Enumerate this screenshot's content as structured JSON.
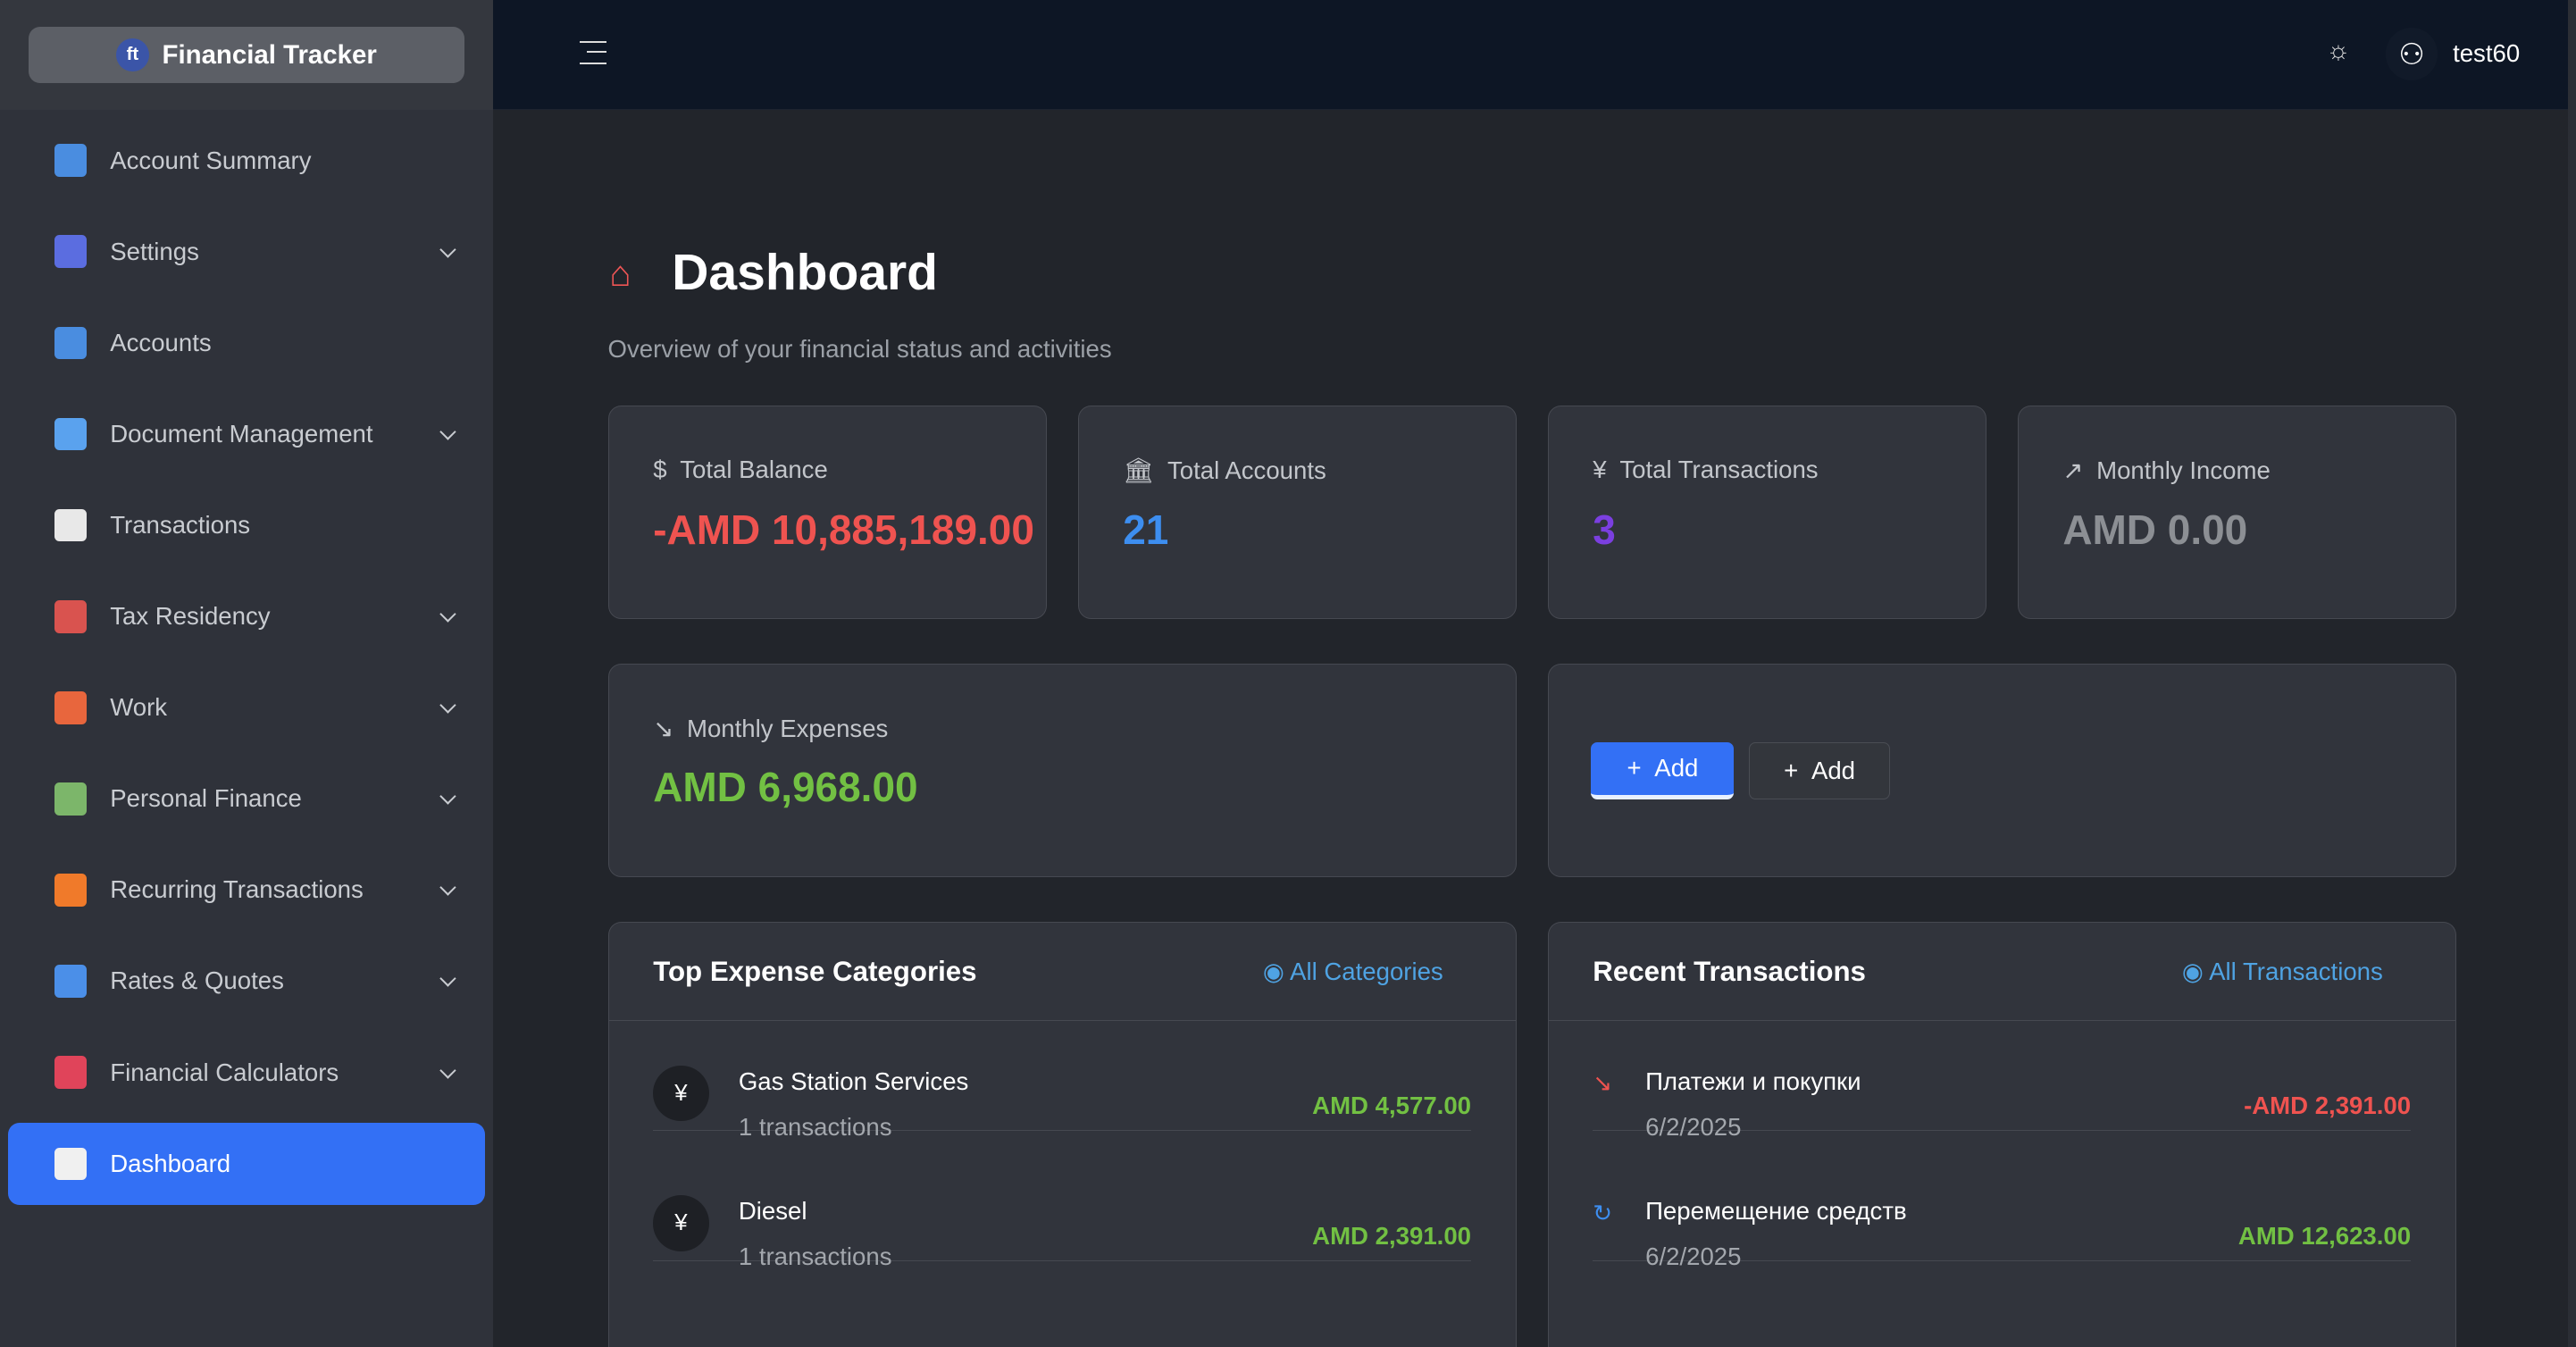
{
  "app": {
    "title": "Financial Tracker",
    "user": "test60"
  },
  "sidebar": {
    "items": [
      {
        "label": "Account Summary",
        "icon": "account-summary-icon",
        "color": "#4a8de0",
        "expandable": false
      },
      {
        "label": "Settings",
        "icon": "workflow-icon",
        "color": "#5b6de0",
        "expandable": true
      },
      {
        "label": "Accounts",
        "icon": "accounts-icon",
        "color": "#4a8de0",
        "expandable": false
      },
      {
        "label": "Document Management",
        "icon": "building-icon",
        "color": "#5aa2ee",
        "expandable": true
      },
      {
        "label": "Transactions",
        "icon": "transactions-icon",
        "color": "#e8e8e8",
        "expandable": false
      },
      {
        "label": "Tax Residency",
        "icon": "person-icon",
        "color": "#d9534f",
        "expandable": true
      },
      {
        "label": "Work",
        "icon": "briefcase-icon",
        "color": "#e8663d",
        "expandable": true
      },
      {
        "label": "Personal Finance",
        "icon": "money-envelope-icon",
        "color": "#7cb66a",
        "expandable": true
      },
      {
        "label": "Recurring Transactions",
        "icon": "refresh-icon",
        "color": "#f07a2a",
        "expandable": true
      },
      {
        "label": "Rates & Quotes",
        "icon": "area-chart-icon",
        "color": "#4b8fe8",
        "expandable": true
      },
      {
        "label": "Financial Calculators",
        "icon": "bar-chart-icon",
        "color": "#e0445a",
        "expandable": true
      },
      {
        "label": "Dashboard",
        "icon": "dashboard-icon",
        "color": "#f0f0f0",
        "expandable": false,
        "active": true
      }
    ]
  },
  "page": {
    "title": "Dashboard",
    "subtitle": "Overview of your financial status and activities"
  },
  "stats": [
    {
      "label": "Total Balance",
      "value": "-AMD 10,885,189.00",
      "color": "#ef5350",
      "icon": "dollar-circle-icon",
      "glyph": "$"
    },
    {
      "label": "Total Accounts",
      "value": "21",
      "color": "#3d8ef0",
      "icon": "bank-icon",
      "glyph": "🏛"
    },
    {
      "label": "Total Transactions",
      "value": "3",
      "color": "#7b3fe0",
      "icon": "transaction-circle-icon",
      "glyph": "¥"
    },
    {
      "label": "Monthly Income",
      "value": "AMD 0.00",
      "color": "#8c8f94",
      "icon": "trend-up-icon",
      "glyph": "↗"
    }
  ],
  "expenses": {
    "label": "Monthly Expenses",
    "value": "AMD 6,968.00",
    "color": "#72c043",
    "icon": "trend-down-icon",
    "glyph": "↘"
  },
  "actions": {
    "add_primary": "Add",
    "add_secondary": "Add"
  },
  "top_categories": {
    "title": "Top Expense Categories",
    "link": "All Categories",
    "items": [
      {
        "name": "Gas Station Services",
        "sub": "1 transactions",
        "amount": "AMD 4,577.00"
      },
      {
        "name": "Diesel",
        "sub": "1 transactions",
        "amount": "AMD 2,391.00"
      }
    ]
  },
  "recent": {
    "title": "Recent Transactions",
    "link": "All Transactions",
    "items": [
      {
        "name": "Платежи и покупки",
        "date": "6/2/2025",
        "amount": "-AMD 2,391.00",
        "color": "#ef5350",
        "glyph": "↘",
        "icon": "expense-icon"
      },
      {
        "name": "Перемещение средств",
        "date": "6/2/2025",
        "amount": "AMD 12,623.00",
        "color": "#72c043",
        "glyph": "↻",
        "icon": "transfer-icon"
      }
    ]
  }
}
